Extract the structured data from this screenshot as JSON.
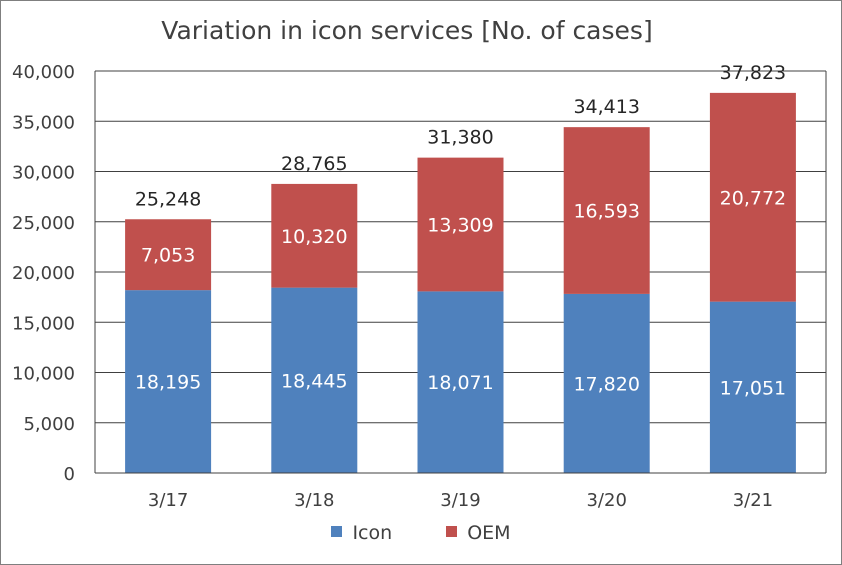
{
  "chart_data": {
    "type": "bar",
    "stacked": true,
    "title": "Variation in icon services [No. of cases]",
    "categories": [
      "3/17",
      "3/18",
      "3/19",
      "3/20",
      "3/21"
    ],
    "series": [
      {
        "name": "Icon",
        "color": "#4f81bd",
        "values": [
          18195,
          18445,
          18071,
          17820,
          17051
        ]
      },
      {
        "name": "OEM",
        "color": "#c0504d",
        "values": [
          7053,
          10320,
          13309,
          16593,
          20772
        ]
      }
    ],
    "totals": [
      25248,
      28765,
      31380,
      34413,
      37823
    ],
    "ylim": [
      0,
      40000
    ],
    "yticks": [
      0,
      5000,
      10000,
      15000,
      20000,
      25000,
      30000,
      35000,
      40000
    ],
    "grid": true,
    "legend": "bottom",
    "data_labels": true
  }
}
